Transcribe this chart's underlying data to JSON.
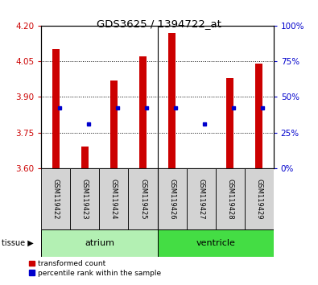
{
  "title": "GDS3625 / 1394722_at",
  "samples": [
    "GSM119422",
    "GSM119423",
    "GSM119424",
    "GSM119425",
    "GSM119426",
    "GSM119427",
    "GSM119428",
    "GSM119429"
  ],
  "red_values": [
    4.1,
    3.69,
    3.97,
    4.07,
    4.17,
    3.6,
    3.98,
    4.04
  ],
  "blue_values": [
    3.855,
    3.785,
    3.855,
    3.855,
    3.855,
    3.785,
    3.855,
    3.855
  ],
  "ylim_left": [
    3.6,
    4.2
  ],
  "ylim_right": [
    0,
    100
  ],
  "yticks_left": [
    3.6,
    3.75,
    3.9,
    4.05,
    4.2
  ],
  "yticks_right": [
    0,
    25,
    50,
    75,
    100
  ],
  "bar_color": "#CC0000",
  "blue_color": "#0000CC",
  "bar_width": 0.25,
  "tick_label_color": "#CC0000",
  "right_tick_color": "#0000CC",
  "atrium_color": "#b3f0b3",
  "ventricle_color": "#44dd44",
  "sample_bg_color": "#d3d3d3"
}
